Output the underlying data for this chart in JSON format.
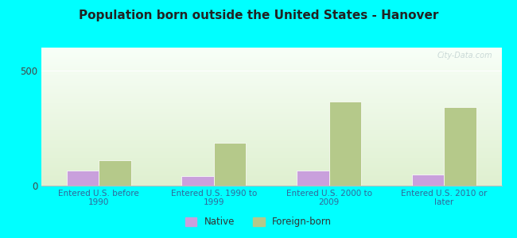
{
  "title": "Population born outside the United States - Hanover",
  "categories": [
    "Entered U.S. before\n1990",
    "Entered U.S. 1990 to\n1999",
    "Entered U.S. 2000 to\n2009",
    "Entered U.S. 2010 or\nlater"
  ],
  "native_values": [
    65,
    40,
    65,
    50
  ],
  "foreign_values": [
    110,
    185,
    365,
    340
  ],
  "native_color": "#c9a0dc",
  "foreign_color": "#b5c98a",
  "ylim": [
    0,
    600
  ],
  "yticks": [
    0,
    500
  ],
  "bg_top": "#f8fff8",
  "bg_bottom": "#dff0d0",
  "outer_bg": "#00ffff",
  "title_fontsize": 11,
  "title_color": "#222222",
  "tick_label_color": "#336699",
  "watermark": "City-Data.com",
  "legend_native": "Native",
  "legend_foreign": "Foreign-born"
}
